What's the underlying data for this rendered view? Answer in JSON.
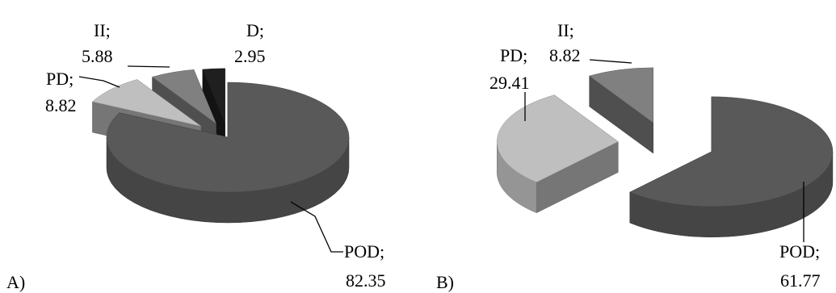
{
  "chart_data": [
    {
      "type": "pie",
      "panel_label": "A)",
      "categories": [
        "POD",
        "PD",
        "II",
        "D"
      ],
      "values": [
        82.35,
        8.82,
        5.88,
        2.95
      ],
      "labels": [
        {
          "name": "POD;",
          "value": "82.35"
        },
        {
          "name": "PD;",
          "value": "8.82"
        },
        {
          "name": "II;",
          "value": "5.88"
        },
        {
          "name": "D;",
          "value": "2.95"
        }
      ],
      "colors": [
        "#595959",
        "#bfbfbf",
        "#808080",
        "#1f1f1f"
      ],
      "exploded": [
        "PD",
        "II",
        "D"
      ],
      "style": "3d"
    },
    {
      "type": "pie",
      "panel_label": "B)",
      "categories": [
        "POD",
        "PD",
        "II"
      ],
      "values": [
        61.77,
        29.41,
        8.82
      ],
      "labels": [
        {
          "name": "POD;",
          "value": "61.77"
        },
        {
          "name": "PD;",
          "value": "29.41"
        },
        {
          "name": "II;",
          "value": "8.82"
        }
      ],
      "colors": [
        "#595959",
        "#bfbfbf",
        "#808080"
      ],
      "exploded": [
        "POD",
        "PD",
        "II"
      ],
      "style": "3d"
    }
  ]
}
